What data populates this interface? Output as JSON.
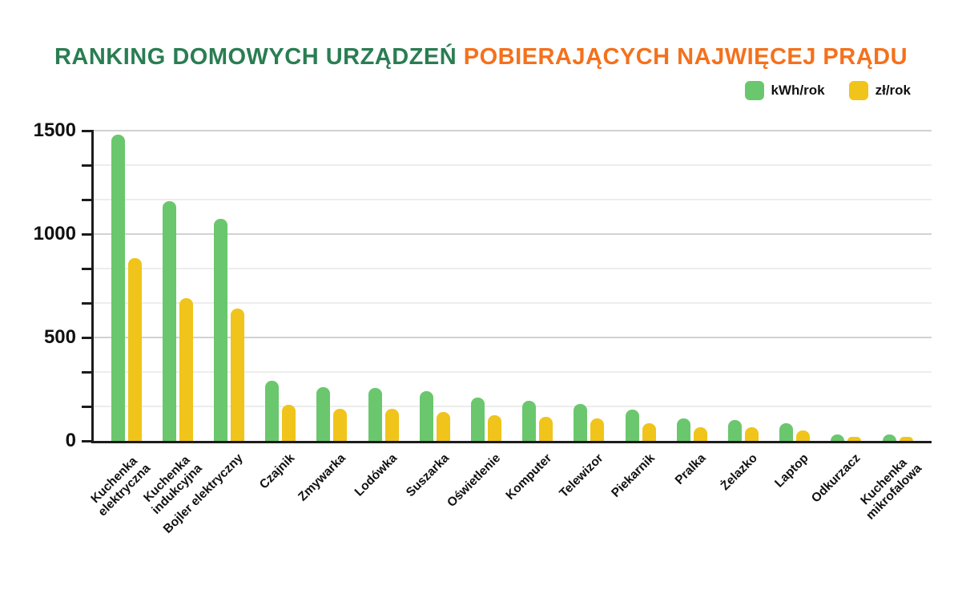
{
  "title": {
    "part1": "RANKING DOMOWYCH URZĄDZEŃ ",
    "part2": "POBIERAJĄCYCH NAJWIĘCEJ PRĄDU",
    "part1_color": "#2a7d52",
    "part2_color": "#f4711c"
  },
  "legend": [
    {
      "label": "kWh/rok",
      "color": "#6ac76d"
    },
    {
      "label": "zł/rok",
      "color": "#f0c41a"
    }
  ],
  "chart_data": {
    "type": "bar",
    "title": "RANKING DOMOWYCH URZĄDZEŃ POBIERAJĄCYCH NAJWIĘCEJ PRĄDU",
    "categories": [
      "Kuchenka\nelektryczna",
      "Kuchenka\nindukcyjna",
      "Bojler elektryczny",
      "Czajnik",
      "Zmywarka",
      "Lodówka",
      "Suszarka",
      "Oświetlenie",
      "Komputer",
      "Telewizor",
      "Piekarnik",
      "Pralka",
      "Żelazko",
      "Laptop",
      "Odkurzacz",
      "Kuchenka\nmikrofalowa"
    ],
    "series": [
      {
        "name": "kWh/rok",
        "color": "#6ac76d",
        "values": [
          1480,
          1160,
          1075,
          290,
          260,
          255,
          240,
          210,
          195,
          180,
          150,
          110,
          100,
          85,
          30,
          30
        ]
      },
      {
        "name": "zł/rok",
        "color": "#f0c41a",
        "values": [
          885,
          690,
          640,
          175,
          155,
          155,
          140,
          125,
          115,
          110,
          85,
          65,
          65,
          50,
          20,
          20
        ]
      }
    ],
    "xlabel": "",
    "ylabel": "",
    "ylim": [
      0,
      1500
    ],
    "ytick_labels": [
      0,
      500,
      1000,
      1500
    ],
    "minor_grid_divisions": 9,
    "grid": true,
    "legend_position": "top-right",
    "x_label_rotation_deg": -45
  }
}
